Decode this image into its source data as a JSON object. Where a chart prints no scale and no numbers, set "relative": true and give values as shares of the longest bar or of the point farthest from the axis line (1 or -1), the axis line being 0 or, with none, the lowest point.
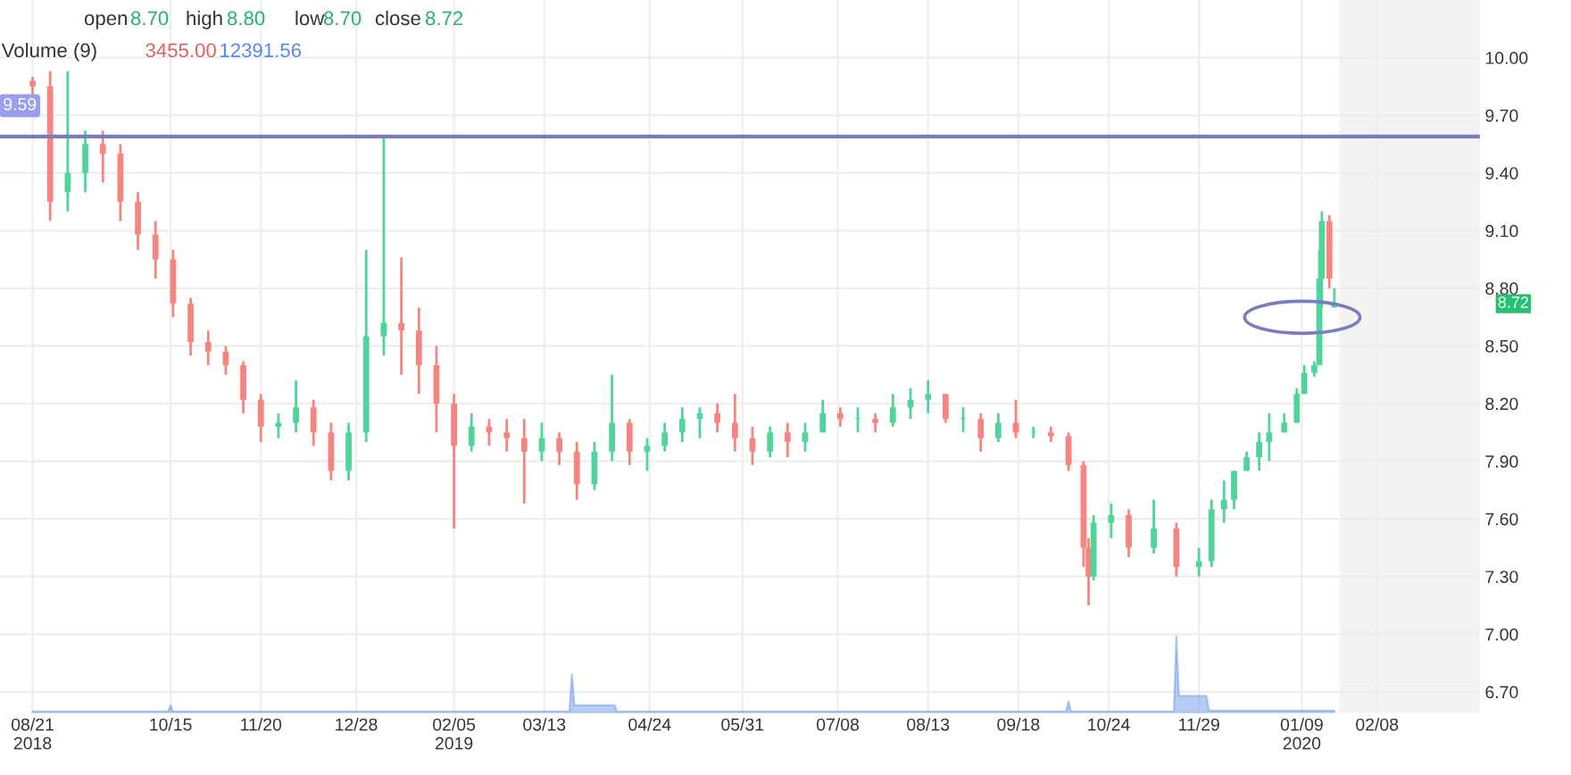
{
  "chart_data": [
    {
      "type": "candlestick",
      "x": [
        "2018-08-21",
        "2018-08-28",
        "2018-09-04",
        "2018-09-11",
        "2018-09-18",
        "2018-09-25",
        "2018-10-02",
        "2018-10-09",
        "2018-10-16",
        "2018-10-23",
        "2018-10-30",
        "2018-11-06",
        "2018-11-13",
        "2018-11-20",
        "2018-11-27",
        "2018-12-04",
        "2018-12-11",
        "2018-12-18",
        "2018-12-25",
        "2019-01-01",
        "2019-01-08",
        "2019-01-15",
        "2019-01-22",
        "2019-01-29",
        "2019-02-05",
        "2019-02-12",
        "2019-02-19",
        "2019-02-26",
        "2019-03-05",
        "2019-03-12",
        "2019-03-19",
        "2019-03-26",
        "2019-04-02",
        "2019-04-09",
        "2019-04-16",
        "2019-04-23",
        "2019-04-30",
        "2019-05-07",
        "2019-05-14",
        "2019-05-21",
        "2019-05-28",
        "2019-06-04",
        "2019-06-11",
        "2019-06-18",
        "2019-06-25",
        "2019-07-02",
        "2019-07-09",
        "2019-07-16",
        "2019-07-23",
        "2019-07-30",
        "2019-08-06",
        "2019-08-13",
        "2019-08-20",
        "2019-08-27",
        "2019-09-03",
        "2019-09-10",
        "2019-09-17",
        "2019-09-24",
        "2019-10-01",
        "2019-10-08",
        "2019-10-14",
        "2019-10-16",
        "2019-10-18",
        "2019-10-25",
        "2019-11-01",
        "2019-11-11",
        "2019-11-20",
        "2019-11-29",
        "2019-12-04",
        "2019-12-09",
        "2019-12-13",
        "2019-12-18",
        "2019-12-23",
        "2019-12-27",
        "2020-01-02",
        "2020-01-07",
        "2020-01-10",
        "2020-01-14",
        "2020-01-16",
        "2020-01-17",
        "2020-01-20",
        "2020-01-22"
      ],
      "ohlc": [
        [
          9.88,
          9.9,
          9.8,
          9.85
        ],
        [
          9.85,
          9.93,
          9.15,
          9.25
        ],
        [
          9.3,
          9.93,
          9.2,
          9.4
        ],
        [
          9.4,
          9.62,
          9.3,
          9.55
        ],
        [
          9.55,
          9.62,
          9.35,
          9.5
        ],
        [
          9.5,
          9.55,
          9.15,
          9.25
        ],
        [
          9.25,
          9.3,
          9.0,
          9.08
        ],
        [
          9.08,
          9.15,
          8.85,
          8.95
        ],
        [
          8.95,
          9.0,
          8.65,
          8.72
        ],
        [
          8.72,
          8.75,
          8.45,
          8.52
        ],
        [
          8.52,
          8.58,
          8.4,
          8.47
        ],
        [
          8.47,
          8.5,
          8.35,
          8.4
        ],
        [
          8.4,
          8.42,
          8.15,
          8.22
        ],
        [
          8.22,
          8.25,
          8.0,
          8.08
        ],
        [
          8.08,
          8.15,
          8.02,
          8.1
        ],
        [
          8.1,
          8.32,
          8.05,
          8.18
        ],
        [
          8.18,
          8.22,
          7.98,
          8.05
        ],
        [
          8.05,
          8.1,
          7.8,
          7.85
        ],
        [
          7.85,
          8.1,
          7.8,
          8.05
        ],
        [
          8.05,
          9.0,
          8.0,
          8.55
        ],
        [
          8.55,
          9.58,
          8.45,
          8.62
        ],
        [
          8.62,
          8.96,
          8.35,
          8.58
        ],
        [
          8.58,
          8.7,
          8.25,
          8.4
        ],
        [
          8.4,
          8.5,
          8.05,
          8.2
        ],
        [
          8.2,
          8.25,
          7.55,
          7.98
        ],
        [
          7.98,
          8.15,
          7.95,
          8.08
        ],
        [
          8.08,
          8.12,
          7.98,
          8.05
        ],
        [
          8.05,
          8.12,
          7.95,
          8.02
        ],
        [
          8.02,
          8.12,
          7.68,
          7.95
        ],
        [
          7.95,
          8.1,
          7.9,
          8.02
        ],
        [
          8.02,
          8.05,
          7.88,
          7.95
        ],
        [
          7.95,
          8.0,
          7.7,
          7.78
        ],
        [
          7.78,
          8.0,
          7.75,
          7.95
        ],
        [
          7.95,
          8.35,
          7.9,
          8.1
        ],
        [
          8.1,
          8.12,
          7.88,
          7.95
        ],
        [
          7.95,
          8.02,
          7.85,
          7.98
        ],
        [
          7.98,
          8.1,
          7.95,
          8.05
        ],
        [
          8.05,
          8.18,
          8.0,
          8.12
        ],
        [
          8.12,
          8.18,
          8.02,
          8.15
        ],
        [
          8.15,
          8.2,
          8.05,
          8.1
        ],
        [
          8.1,
          8.25,
          7.95,
          8.02
        ],
        [
          8.02,
          8.08,
          7.88,
          7.95
        ],
        [
          7.95,
          8.08,
          7.92,
          8.05
        ],
        [
          8.05,
          8.1,
          7.92,
          8.0
        ],
        [
          8.0,
          8.1,
          7.95,
          8.05
        ],
        [
          8.05,
          8.22,
          8.05,
          8.15
        ],
        [
          8.15,
          8.18,
          8.08,
          8.12
        ],
        [
          8.12,
          8.18,
          8.05,
          8.12
        ],
        [
          8.12,
          8.15,
          8.05,
          8.1
        ],
        [
          8.1,
          8.25,
          8.08,
          8.18
        ],
        [
          8.18,
          8.28,
          8.12,
          8.22
        ],
        [
          8.22,
          8.32,
          8.15,
          8.25
        ],
        [
          8.25,
          8.25,
          8.1,
          8.12
        ],
        [
          8.12,
          8.18,
          8.05,
          8.12
        ],
        [
          8.12,
          8.15,
          7.95,
          8.02
        ],
        [
          8.02,
          8.15,
          8.0,
          8.1
        ],
        [
          8.1,
          8.22,
          8.02,
          8.05
        ],
        [
          8.05,
          8.08,
          8.02,
          8.05
        ],
        [
          8.05,
          8.08,
          8.0,
          8.03
        ],
        [
          8.03,
          8.05,
          7.85,
          7.88
        ],
        [
          7.88,
          7.9,
          7.35,
          7.45
        ],
        [
          7.45,
          7.5,
          7.15,
          7.3
        ],
        [
          7.3,
          7.62,
          7.28,
          7.58
        ],
        [
          7.58,
          7.68,
          7.5,
          7.62
        ],
        [
          7.62,
          7.65,
          7.4,
          7.45
        ],
        [
          7.45,
          7.7,
          7.42,
          7.55
        ],
        [
          7.55,
          7.58,
          7.3,
          7.35
        ],
        [
          7.35,
          7.45,
          7.3,
          7.38
        ],
        [
          7.38,
          7.7,
          7.35,
          7.65
        ],
        [
          7.65,
          7.8,
          7.58,
          7.7
        ],
        [
          7.7,
          7.85,
          7.65,
          7.85
        ],
        [
          7.85,
          7.95,
          7.85,
          7.92
        ],
        [
          7.92,
          8.05,
          7.85,
          8.0
        ],
        [
          8.0,
          8.15,
          7.9,
          8.05
        ],
        [
          8.05,
          8.15,
          8.05,
          8.1
        ],
        [
          8.1,
          8.28,
          8.1,
          8.25
        ],
        [
          8.25,
          8.4,
          8.25,
          8.36
        ],
        [
          8.36,
          8.42,
          8.34,
          8.4
        ],
        [
          8.4,
          9.0,
          8.4,
          8.85
        ],
        [
          8.85,
          9.2,
          8.7,
          9.15
        ],
        [
          9.15,
          9.18,
          8.8,
          8.85
        ],
        [
          8.7,
          8.8,
          8.7,
          8.72
        ]
      ],
      "colors": [
        "#f7847f",
        "#f7847f",
        "#4fd49c",
        "#4fd49c",
        "#f7847f",
        "#f7847f",
        "#f7847f",
        "#f7847f",
        "#f7847f",
        "#f7847f",
        "#f7847f",
        "#f7847f",
        "#f7847f",
        "#f7847f",
        "#4fd49c",
        "#4fd49c",
        "#f7847f",
        "#f7847f",
        "#4fd49c",
        "#4fd49c",
        "#4fd49c",
        "#f7847f",
        "#f7847f",
        "#f7847f",
        "#f7847f",
        "#4fd49c",
        "#f7847f",
        "#f7847f",
        "#f7847f",
        "#4fd49c",
        "#f7847f",
        "#f7847f",
        "#4fd49c",
        "#4fd49c",
        "#f7847f",
        "#4fd49c",
        "#4fd49c",
        "#4fd49c",
        "#4fd49c",
        "#f7847f",
        "#f7847f",
        "#f7847f",
        "#4fd49c",
        "#f7847f",
        "#4fd49c",
        "#4fd49c",
        "#f7847f",
        "#4fd49c",
        "#f7847f",
        "#4fd49c",
        "#4fd49c",
        "#4fd49c",
        "#f7847f",
        "#4fd49c",
        "#f7847f",
        "#4fd49c",
        "#f7847f",
        "#4fd49c",
        "#f7847f",
        "#f7847f",
        "#f7847f",
        "#f7847f",
        "#4fd49c",
        "#4fd49c",
        "#f7847f",
        "#4fd49c",
        "#f7847f",
        "#4fd49c",
        "#4fd49c",
        "#4fd49c",
        "#4fd49c",
        "#4fd49c",
        "#4fd49c",
        "#4fd49c",
        "#4fd49c",
        "#4fd49c",
        "#4fd49c",
        "#4fd49c",
        "#4fd49c",
        "#4fd49c",
        "#f7847f",
        "#4fd49c"
      ],
      "xlim": [
        "2018-08-08",
        "2020-03-20"
      ],
      "xticks": [
        {
          "value": "2018-08-21",
          "label": "08/21\n2018"
        },
        {
          "value": "2018-10-15",
          "label": "10/15"
        },
        {
          "value": "2018-11-20",
          "label": "11/20"
        },
        {
          "value": "2018-12-28",
          "label": "12/28"
        },
        {
          "value": "2019-02-05",
          "label": "02/05\n2019"
        },
        {
          "value": "2019-03-13",
          "label": "03/13"
        },
        {
          "value": "2019-04-24",
          "label": "04/24"
        },
        {
          "value": "2019-05-31",
          "label": "05/31"
        },
        {
          "value": "2019-07-08",
          "label": "07/08"
        },
        {
          "value": "2019-08-13",
          "label": "08/13"
        },
        {
          "value": "2019-09-18",
          "label": "09/18"
        },
        {
          "value": "2019-10-24",
          "label": "10/24"
        },
        {
          "value": "2019-11-29",
          "label": "11/29"
        },
        {
          "value": "2020-01-09",
          "label": "01/09\n2020"
        },
        {
          "value": "2020-02-08",
          "label": "02/08"
        }
      ],
      "ylim": [
        6.59,
        10.3
      ],
      "yticks": [
        {
          "value": 6.7,
          "label": "6.70"
        },
        {
          "value": 7.0,
          "label": "7.00"
        },
        {
          "value": 7.3,
          "label": "7.30"
        },
        {
          "value": 7.6,
          "label": "7.60"
        },
        {
          "value": 7.9,
          "label": "7.90"
        },
        {
          "value": 8.2,
          "label": "8.20"
        },
        {
          "value": 8.5,
          "label": "8.50"
        },
        {
          "value": 8.8,
          "label": "8.80"
        },
        {
          "value": 9.1,
          "label": "9.10"
        },
        {
          "value": 9.4,
          "label": "9.40"
        },
        {
          "value": 9.7,
          "label": "9.70"
        },
        {
          "value": 10.0,
          "label": "10.00"
        }
      ],
      "grid": true,
      "ref_lines": [
        {
          "axis": "y",
          "value": 9.59,
          "label": "9.59",
          "color": "#7b7bc4"
        }
      ],
      "bands": [
        {
          "axis": "x",
          "from": "2020-01-24",
          "to": "2020-03-20",
          "color": "#f3f3f3"
        }
      ],
      "annotations": [
        "open",
        "8.70",
        "high",
        "8.80",
        "low",
        "8.70",
        "close",
        "8.72",
        "Volume (9)",
        "3455.00",
        "12391.56",
        "8.72"
      ]
    },
    {
      "type": "area",
      "relative": true,
      "color": "#6f9ae8",
      "tick_labels": false,
      "xlim": [
        "2018-08-08",
        "2020-03-20"
      ],
      "x": [
        "2018-08-21",
        "2018-10-14",
        "2018-10-15",
        "2018-10-16",
        "2019-03-23",
        "2019-03-24",
        "2019-03-25",
        "2019-04-10",
        "2019-04-11",
        "2019-10-07",
        "2019-10-08",
        "2019-10-09",
        "2019-11-19",
        "2019-11-20",
        "2019-11-21",
        "2019-12-02",
        "2019-12-03",
        "2020-01-22"
      ],
      "values": [
        0.02,
        0.02,
        0.1,
        0.02,
        0.02,
        0.5,
        0.1,
        0.1,
        0.02,
        0.02,
        0.15,
        0.02,
        0.02,
        1.0,
        0.22,
        0.22,
        0.03,
        0.03
      ]
    }
  ]
}
